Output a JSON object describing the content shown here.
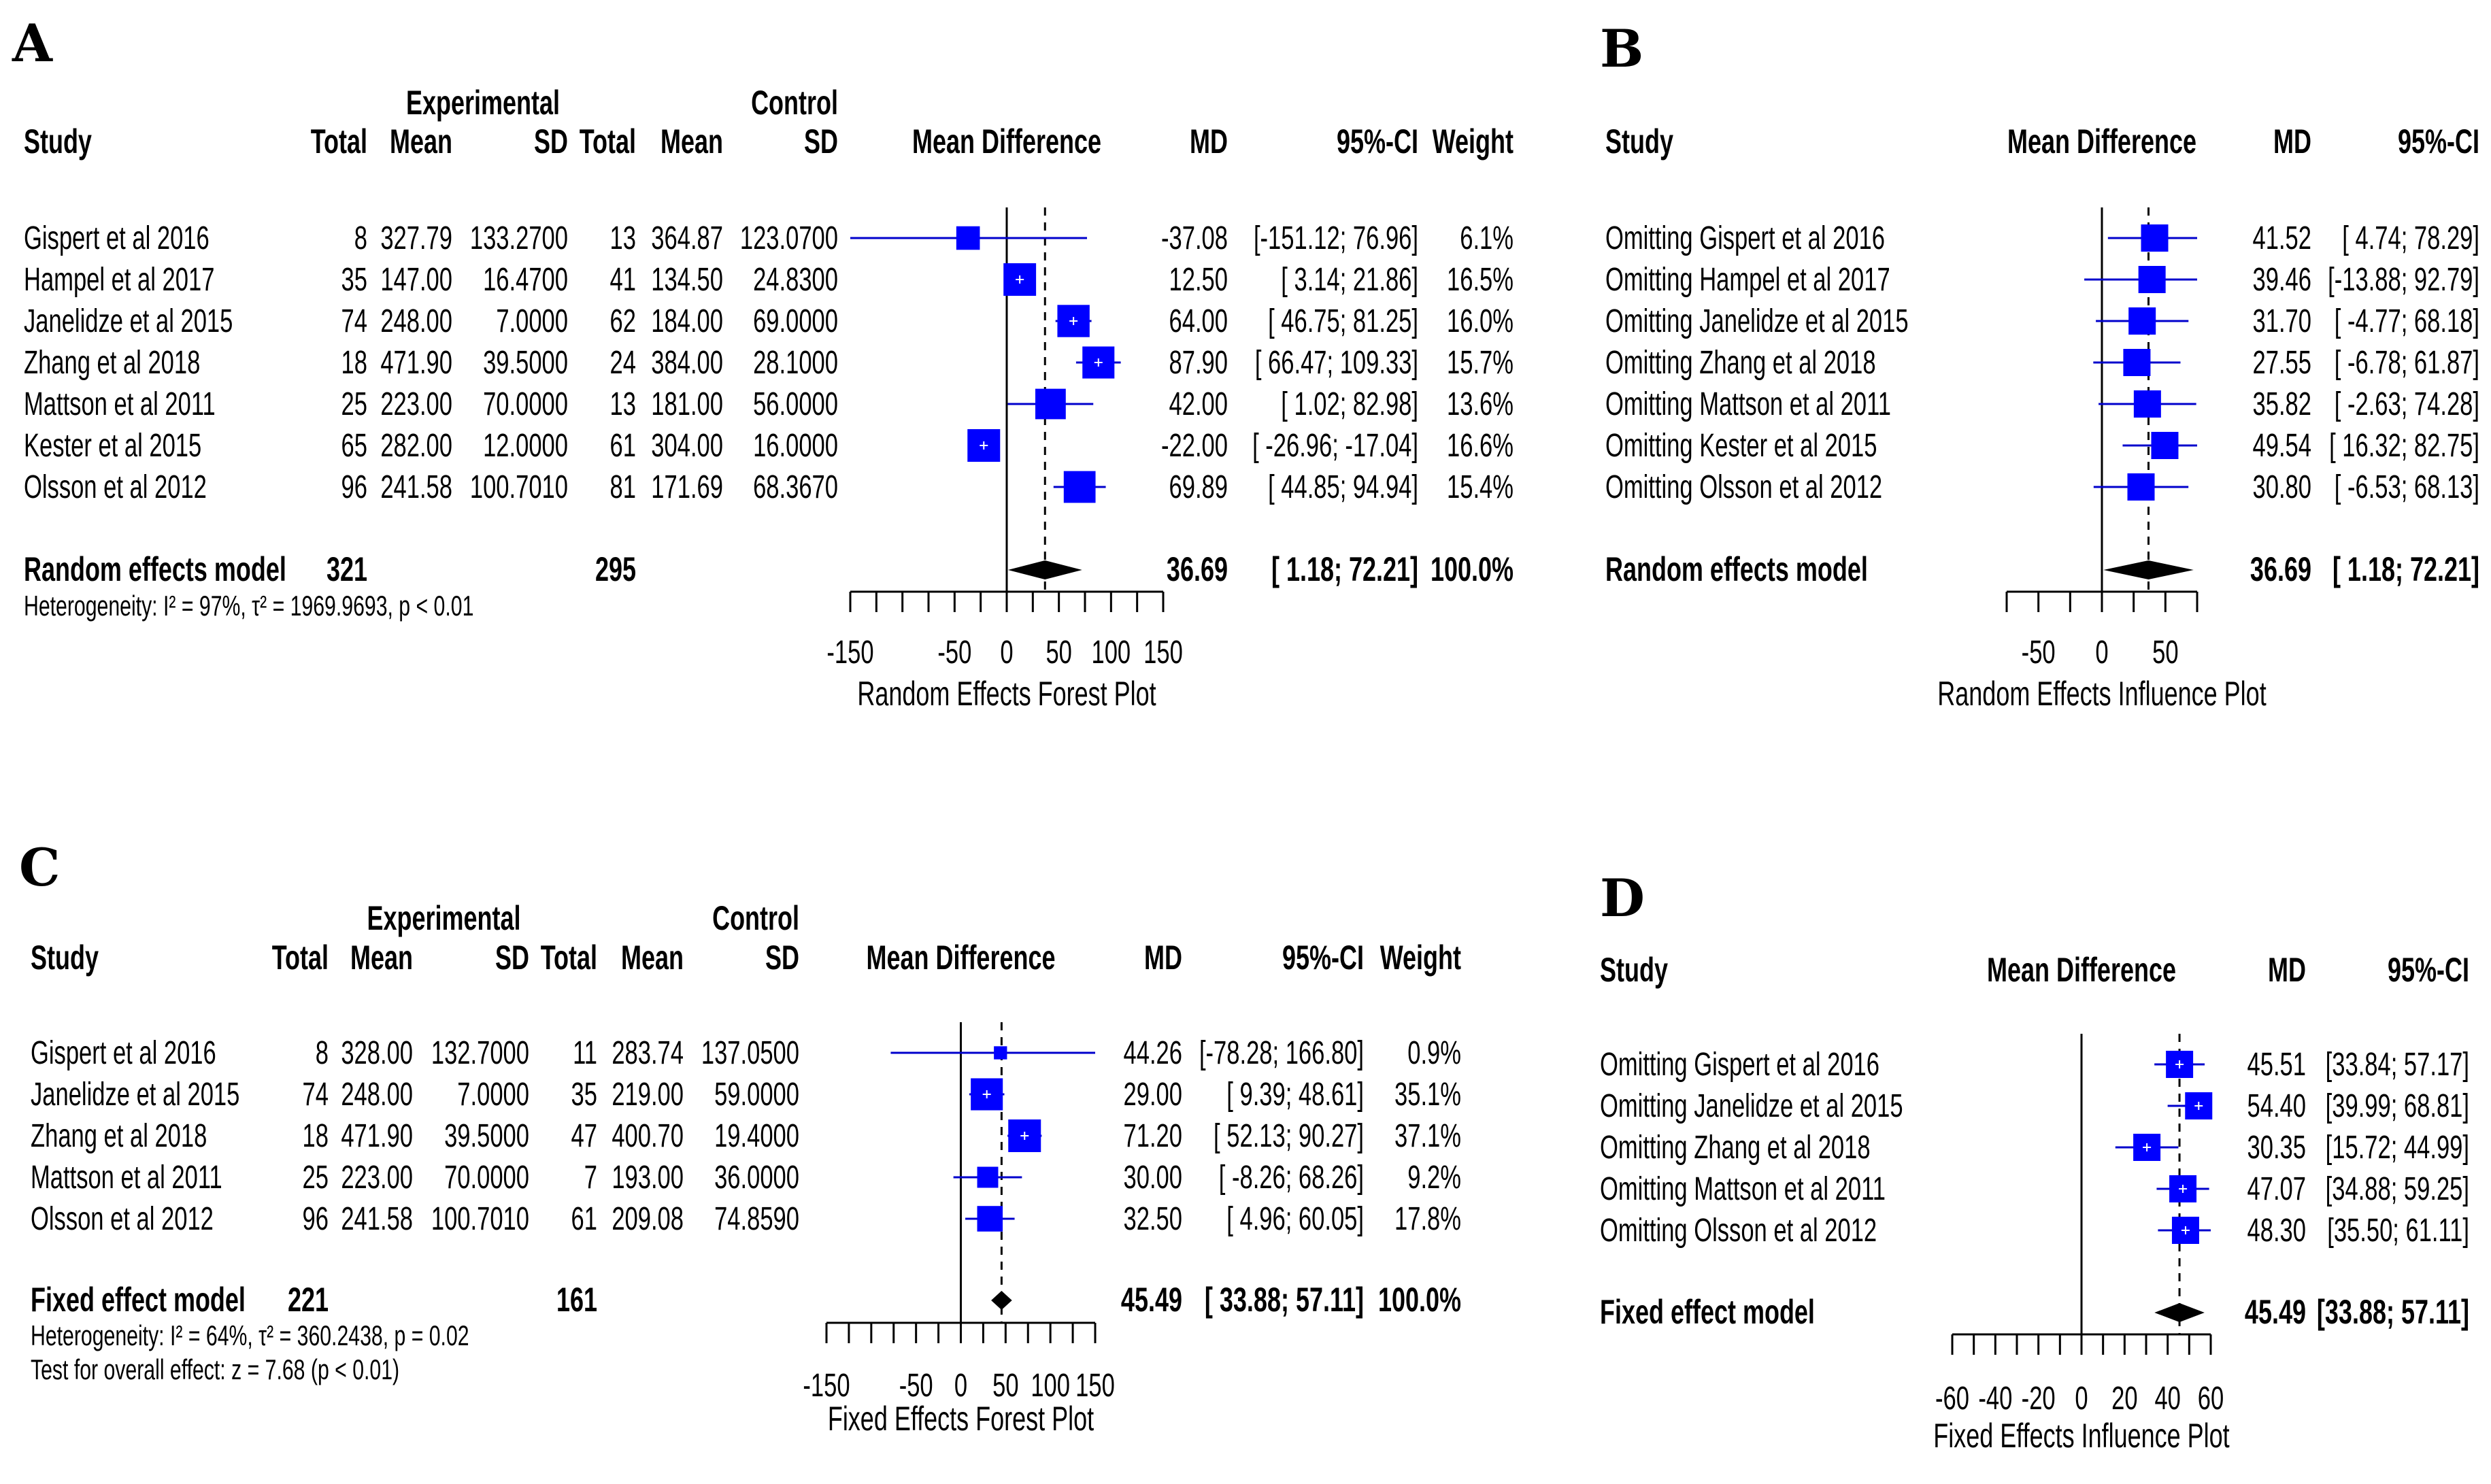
{
  "chart_data": [
    {
      "panel": "A",
      "type": "forest",
      "headers": {
        "experimental": "Experimental",
        "control": "Control",
        "study": "Study",
        "total": "Total",
        "mean": "Mean",
        "sd": "SD",
        "plot": "Mean Difference",
        "md": "MD",
        "ci": "95%-CI",
        "weight": "Weight"
      },
      "rows": [
        {
          "study": "Gispert et al  2016",
          "e_total": "8",
          "e_mean": "327.79",
          "e_sd": "133.2700",
          "c_total": "13",
          "c_mean": "364.87",
          "c_sd": "123.0700",
          "md": -37.08,
          "lo": -151.12,
          "hi": 76.96,
          "weight": 6.1,
          "md_text": "-37.08",
          "ci_text": "[-151.12;  76.96]",
          "weight_text": "6.1%"
        },
        {
          "study": "Hampel et al  2017",
          "e_total": "35",
          "e_mean": "147.00",
          "e_sd": "16.4700",
          "c_total": "41",
          "c_mean": "134.50",
          "c_sd": "24.8300",
          "md": 12.5,
          "lo": 3.14,
          "hi": 21.86,
          "weight": 16.5,
          "md_text": "12.50",
          "ci_text": "[   3.14;  21.86]",
          "weight_text": "16.5%"
        },
        {
          "study": "Janelidze et al  2015",
          "e_total": "74",
          "e_mean": "248.00",
          "e_sd": "7.0000",
          "c_total": "62",
          "c_mean": "184.00",
          "c_sd": "69.0000",
          "md": 64.0,
          "lo": 46.75,
          "hi": 81.25,
          "weight": 16.0,
          "md_text": "64.00",
          "ci_text": "[  46.75;  81.25]",
          "weight_text": "16.0%"
        },
        {
          "study": "Zhang et al  2018",
          "e_total": "18",
          "e_mean": "471.90",
          "e_sd": "39.5000",
          "c_total": "24",
          "c_mean": "384.00",
          "c_sd": "28.1000",
          "md": 87.9,
          "lo": 66.47,
          "hi": 109.33,
          "weight": 15.7,
          "md_text": "87.90",
          "ci_text": "[  66.47; 109.33]",
          "weight_text": "15.7%"
        },
        {
          "study": "Mattson et al  2011",
          "e_total": "25",
          "e_mean": "223.00",
          "e_sd": "70.0000",
          "c_total": "13",
          "c_mean": "181.00",
          "c_sd": "56.0000",
          "md": 42.0,
          "lo": 1.02,
          "hi": 82.98,
          "weight": 13.6,
          "md_text": "42.00",
          "ci_text": "[   1.02;  82.98]",
          "weight_text": "13.6%"
        },
        {
          "study": "Kester et al  2015",
          "e_total": "65",
          "e_mean": "282.00",
          "e_sd": "12.0000",
          "c_total": "61",
          "c_mean": "304.00",
          "c_sd": "16.0000",
          "md": -22.0,
          "lo": -26.96,
          "hi": -17.04,
          "weight": 16.6,
          "md_text": "-22.00",
          "ci_text": "[ -26.96; -17.04]",
          "weight_text": "16.6%"
        },
        {
          "study": "Olsson et al  2012",
          "e_total": "96",
          "e_mean": "241.58",
          "e_sd": "100.7010",
          "c_total": "81",
          "c_mean": "171.69",
          "c_sd": "68.3670",
          "md": 69.89,
          "lo": 44.85,
          "hi": 94.94,
          "weight": 15.4,
          "md_text": "69.89",
          "ci_text": "[  44.85;  94.94]",
          "weight_text": "15.4%"
        }
      ],
      "summary": {
        "label": "Random effects model",
        "e_total": "321",
        "c_total": "295",
        "md": 36.69,
        "lo": 1.18,
        "hi": 72.21,
        "md_text": "36.69",
        "ci_text": "[   1.18;  72.21]",
        "weight_text": "100.0%"
      },
      "notes": [
        "Heterogeneity: I² = 97%, τ² = 1969.9693, p < 0.01"
      ],
      "xlim": [
        -150,
        150
      ],
      "x_ticks": [
        -150,
        -50,
        0,
        50,
        100,
        150
      ],
      "x_tick_labels": [
        "-150",
        "-50",
        "0",
        "50",
        "100",
        "150"
      ],
      "minor_ticks": [
        -150,
        -125,
        -100,
        -75,
        -50,
        -25,
        0,
        25,
        50,
        75,
        100,
        125,
        150
      ],
      "xlabel": "Random Effects Forest Plot"
    },
    {
      "panel": "B",
      "type": "forest",
      "headers": {
        "study": "Study",
        "plot": "Mean Difference",
        "md": "MD",
        "ci": "95%-CI"
      },
      "rows": [
        {
          "study": "Omitting Gispert et al  2016",
          "md": 41.52,
          "lo": 4.74,
          "hi": 78.29,
          "md_text": "41.52",
          "ci_text": "[  4.74; 78.29]"
        },
        {
          "study": "Omitting Hampel et al  2017",
          "md": 39.46,
          "lo": -13.88,
          "hi": 92.79,
          "md_text": "39.46",
          "ci_text": "[-13.88; 92.79]"
        },
        {
          "study": "Omitting Janelidze et al  2015",
          "md": 31.7,
          "lo": -4.77,
          "hi": 68.18,
          "md_text": "31.70",
          "ci_text": "[ -4.77; 68.18]"
        },
        {
          "study": "Omitting Zhang et al  2018",
          "md": 27.55,
          "lo": -6.78,
          "hi": 61.87,
          "md_text": "27.55",
          "ci_text": "[ -6.78; 61.87]"
        },
        {
          "study": "Omitting Mattson et al  2011",
          "md": 35.82,
          "lo": -2.63,
          "hi": 74.28,
          "md_text": "35.82",
          "ci_text": "[ -2.63; 74.28]"
        },
        {
          "study": "Omitting Kester et al  2015",
          "md": 49.54,
          "lo": 16.32,
          "hi": 82.75,
          "md_text": "49.54",
          "ci_text": "[ 16.32; 82.75]"
        },
        {
          "study": "Omitting Olsson et al  2012",
          "md": 30.8,
          "lo": -6.53,
          "hi": 68.13,
          "md_text": "30.80",
          "ci_text": "[ -6.53; 68.13]"
        }
      ],
      "summary": {
        "label": "Random effects model",
        "md": 36.69,
        "lo": 1.18,
        "hi": 72.21,
        "md_text": "36.69",
        "ci_text": "[  1.18; 72.21]"
      },
      "xlim": [
        -75,
        75
      ],
      "x_ticks": [
        -50,
        0,
        50
      ],
      "x_tick_labels": [
        "-50",
        "0",
        "50"
      ],
      "minor_ticks": [
        -75,
        -50,
        -25,
        0,
        25,
        50,
        75
      ],
      "xlabel": "Random Effects Influence Plot"
    },
    {
      "panel": "C",
      "type": "forest",
      "headers": {
        "experimental": "Experimental",
        "control": "Control",
        "study": "Study",
        "total": "Total",
        "mean": "Mean",
        "sd": "SD",
        "plot": "Mean Difference",
        "md": "MD",
        "ci": "95%-CI",
        "weight": "Weight"
      },
      "rows": [
        {
          "study": "Gispert et al  2016",
          "e_total": "8",
          "e_mean": "328.00",
          "e_sd": "132.7000",
          "c_total": "11",
          "c_mean": "283.74",
          "c_sd": "137.0500",
          "md": 44.26,
          "lo": -78.28,
          "hi": 166.8,
          "weight": 0.9,
          "md_text": "44.26",
          "ci_text": "[-78.28; 166.80]",
          "weight_text": "0.9%"
        },
        {
          "study": "Janelidze et al  2015",
          "e_total": "74",
          "e_mean": "248.00",
          "e_sd": "7.0000",
          "c_total": "35",
          "c_mean": "219.00",
          "c_sd": "59.0000",
          "md": 29.0,
          "lo": 9.39,
          "hi": 48.61,
          "weight": 35.1,
          "md_text": "29.00",
          "ci_text": "[  9.39;  48.61]",
          "weight_text": "35.1%"
        },
        {
          "study": "Zhang et al  2018",
          "e_total": "18",
          "e_mean": "471.90",
          "e_sd": "39.5000",
          "c_total": "47",
          "c_mean": "400.70",
          "c_sd": "19.4000",
          "md": 71.2,
          "lo": 52.13,
          "hi": 90.27,
          "weight": 37.1,
          "md_text": "71.20",
          "ci_text": "[ 52.13;  90.27]",
          "weight_text": "37.1%"
        },
        {
          "study": "Mattson et al  2011",
          "e_total": "25",
          "e_mean": "223.00",
          "e_sd": "70.0000",
          "c_total": "7",
          "c_mean": "193.00",
          "c_sd": "36.0000",
          "md": 30.0,
          "lo": -8.26,
          "hi": 68.26,
          "weight": 9.2,
          "md_text": "30.00",
          "ci_text": "[ -8.26;  68.26]",
          "weight_text": "9.2%"
        },
        {
          "study": "Olsson et al  2012",
          "e_total": "96",
          "e_mean": "241.58",
          "e_sd": "100.7010",
          "c_total": "61",
          "c_mean": "209.08",
          "c_sd": "74.8590",
          "md": 32.5,
          "lo": 4.96,
          "hi": 60.05,
          "weight": 17.8,
          "md_text": "32.50",
          "ci_text": "[  4.96;  60.05]",
          "weight_text": "17.8%"
        }
      ],
      "summary": {
        "label": "Fixed effect model",
        "e_total": "221",
        "c_total": "161",
        "md": 45.49,
        "lo": 33.88,
        "hi": 57.11,
        "md_text": "45.49",
        "ci_text": "[ 33.88;  57.11]",
        "weight_text": "100.0%"
      },
      "notes": [
        "Heterogeneity: I² = 64%, τ² = 360.2438, p = 0.02",
        "Test for overall effect: z = 7.68 (p < 0.01)"
      ],
      "xlim": [
        -150,
        150
      ],
      "x_ticks": [
        -150,
        -50,
        0,
        50,
        100,
        150
      ],
      "x_tick_labels": [
        "-150",
        "-50",
        "0",
        "50",
        "100",
        "150"
      ],
      "minor_ticks": [
        -150,
        -125,
        -100,
        -75,
        -50,
        -25,
        0,
        25,
        50,
        75,
        100,
        125,
        150
      ],
      "xlabel": "Fixed Effects Forest Plot"
    },
    {
      "panel": "D",
      "type": "forest",
      "headers": {
        "study": "Study",
        "plot": "Mean Difference",
        "md": "MD",
        "ci": "95%-CI"
      },
      "rows": [
        {
          "study": "Omitting Gispert et al  2016",
          "md": 45.51,
          "lo": 33.84,
          "hi": 57.17,
          "md_text": "45.51",
          "ci_text": "[33.84; 57.17]"
        },
        {
          "study": "Omitting Janelidze et al  2015",
          "md": 54.4,
          "lo": 39.99,
          "hi": 68.81,
          "md_text": "54.40",
          "ci_text": "[39.99; 68.81]"
        },
        {
          "study": "Omitting Zhang et al  2018",
          "md": 30.35,
          "lo": 15.72,
          "hi": 44.99,
          "md_text": "30.35",
          "ci_text": "[15.72; 44.99]"
        },
        {
          "study": "Omitting Mattson et al  2011",
          "md": 47.07,
          "lo": 34.88,
          "hi": 59.25,
          "md_text": "47.07",
          "ci_text": "[34.88; 59.25]"
        },
        {
          "study": "Omitting Olsson et al  2012",
          "md": 48.3,
          "lo": 35.5,
          "hi": 61.11,
          "md_text": "48.30",
          "ci_text": "[35.50; 61.11]"
        }
      ],
      "summary": {
        "label": "Fixed effect model",
        "md": 45.49,
        "lo": 33.88,
        "hi": 57.11,
        "md_text": "45.49",
        "ci_text": "[33.88; 57.11]"
      },
      "xlim": [
        -60,
        60
      ],
      "x_ticks": [
        -60,
        -40,
        -20,
        0,
        20,
        40,
        60
      ],
      "x_tick_labels": [
        "-60",
        "-40",
        "-20",
        "0",
        "20",
        "40",
        "60"
      ],
      "minor_ticks": [
        -60,
        -50,
        -40,
        -30,
        -20,
        -10,
        0,
        10,
        20,
        30,
        40,
        50,
        60
      ],
      "xlabel": "Fixed Effects Influence Plot"
    }
  ],
  "colors": {
    "square": "#0000ff",
    "ci_line": "#0000cc",
    "square_mark": "#ffffff",
    "diamond": "#000000",
    "text": "#000000"
  }
}
